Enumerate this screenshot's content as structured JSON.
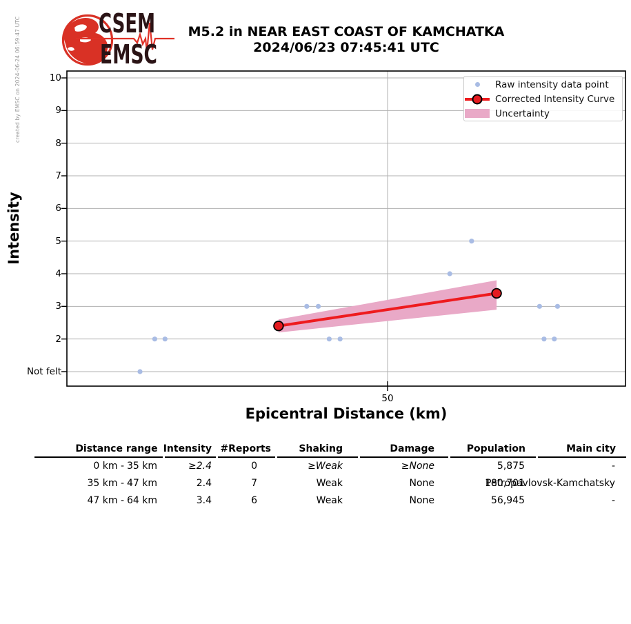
{
  "meta": {
    "created_by": "created by EMSC on 2024-06-24 06:59:47 UTC"
  },
  "header": {
    "logo_line1": "CSEM",
    "logo_line2": "EMSC",
    "title_line1": "M5.2 in NEAR EAST COAST OF KAMCHATKA",
    "title_line2": "2024/06/23 07:45:41 UTC"
  },
  "chart_data": {
    "type": "scatter",
    "title": "M5.2 in NEAR EAST COAST OF KAMCHATKA 2024/06/23 07:45:41 UTC",
    "xlabel": "Epicentral Distance (km)",
    "ylabel": "Intensity",
    "xlim": [
      0,
      87
    ],
    "ylim": [
      0.55,
      10.2
    ],
    "grid": true,
    "legend_position": "upper right",
    "x_ticks": [
      {
        "value": 50,
        "label": "50"
      }
    ],
    "y_ticks": [
      {
        "value": 1,
        "label": "Not felt"
      },
      {
        "value": 2,
        "label": "2"
      },
      {
        "value": 3,
        "label": "3"
      },
      {
        "value": 4,
        "label": "4"
      },
      {
        "value": 5,
        "label": "5"
      },
      {
        "value": 6,
        "label": "6"
      },
      {
        "value": 7,
        "label": "7"
      },
      {
        "value": 8,
        "label": "8"
      },
      {
        "value": 9,
        "label": "9"
      },
      {
        "value": 10,
        "label": "10"
      }
    ],
    "legend": [
      {
        "label": "Raw intensity data point",
        "marker": "dot"
      },
      {
        "label": "Corrected Intensity Curve",
        "marker": "line-circle"
      },
      {
        "label": "Uncertainty",
        "marker": "patch"
      }
    ],
    "raw_points": [
      {
        "x": 11.4,
        "y": 1
      },
      {
        "x": 13.7,
        "y": 2
      },
      {
        "x": 15.3,
        "y": 2
      },
      {
        "x": 37.4,
        "y": 3
      },
      {
        "x": 39.2,
        "y": 3
      },
      {
        "x": 40.9,
        "y": 2
      },
      {
        "x": 42.6,
        "y": 2
      },
      {
        "x": 59.7,
        "y": 4
      },
      {
        "x": 63.1,
        "y": 5
      },
      {
        "x": 73.7,
        "y": 3
      },
      {
        "x": 76.5,
        "y": 3
      },
      {
        "x": 74.4,
        "y": 2
      },
      {
        "x": 76.0,
        "y": 2
      }
    ],
    "corrected_curve": [
      {
        "x": 33,
        "y": 2.4
      },
      {
        "x": 67,
        "y": 3.4
      }
    ],
    "uncertainty_band": [
      {
        "x": 33,
        "lo": 2.2,
        "hi": 2.6
      },
      {
        "x": 67,
        "lo": 2.9,
        "hi": 3.8
      }
    ],
    "colors": {
      "raw_point": "#a9bce4",
      "curve": "#ee1b1e",
      "marker_fill": "#e51b20",
      "band": "#e9a9c7",
      "grid": "#b0b0b0",
      "spine": "#000000",
      "logo_red": "#d93125",
      "logo_dark": "#2b1416"
    }
  },
  "table": {
    "headers": [
      "Distance range",
      "Intensity",
      "#Reports",
      "Shaking",
      "Damage",
      "Population",
      "Main city"
    ],
    "rows": [
      {
        "range_from": "0 km -",
        "range_to": "35 km",
        "intensity": "≥2.4",
        "reports": "0",
        "shaking": "≥Weak",
        "damage": "≥None",
        "population": "5,875",
        "main_city": "-"
      },
      {
        "range_from": "35 km -",
        "range_to": "47 km",
        "intensity": "2.4",
        "reports": "7",
        "shaking": "Weak",
        "damage": "None",
        "population": "180,701",
        "main_city": "Petropavlovsk-Kamchatsky"
      },
      {
        "range_from": "47 km -",
        "range_to": "64 km",
        "intensity": "3.4",
        "reports": "6",
        "shaking": "Weak",
        "damage": "None",
        "population": "56,945",
        "main_city": "-"
      }
    ]
  }
}
